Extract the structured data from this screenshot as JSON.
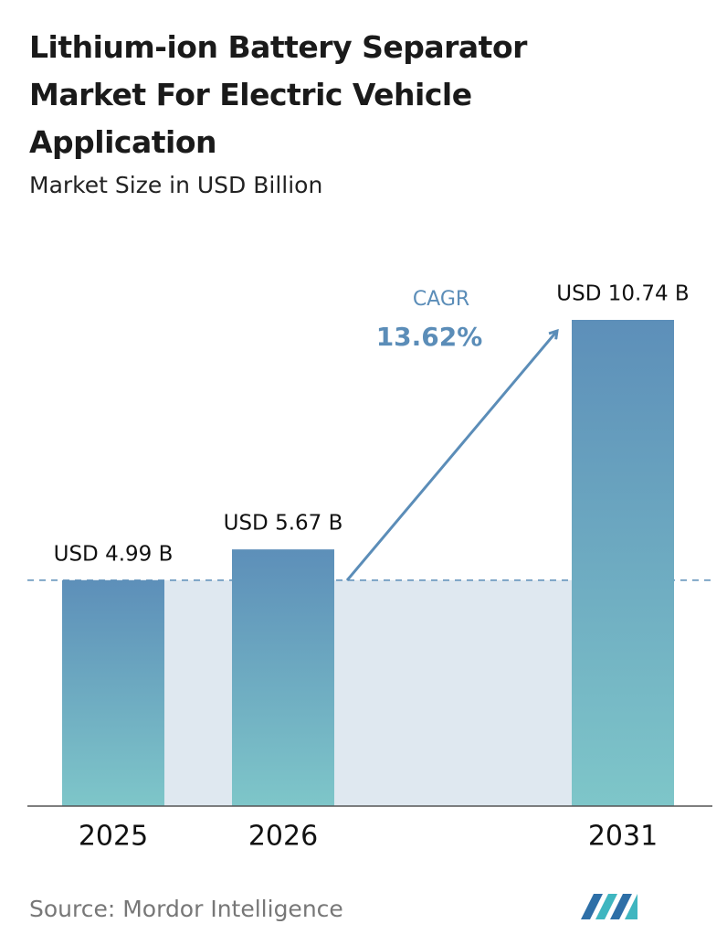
{
  "chart_data": {
    "type": "bar",
    "title": "Lithium-ion Battery Separator Market For Electric Vehicle Application",
    "subtitle": "Market Size in USD Billion",
    "categories": [
      "2025",
      "2026",
      "2031"
    ],
    "values": [
      4.99,
      5.67,
      10.74
    ],
    "value_labels": [
      "USD 4.99 B",
      "USD 5.67 B",
      "USD 10.74 B"
    ],
    "annotation": {
      "label": "CAGR",
      "value": "13.62%"
    },
    "source": "Source: Mordor Intelligence"
  }
}
